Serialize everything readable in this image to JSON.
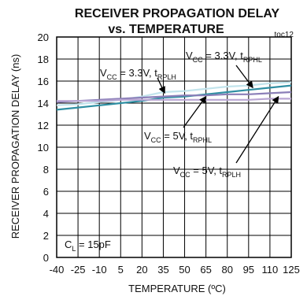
{
  "chart_data": {
    "type": "line",
    "title": "RECEIVER PROPAGATION DELAY",
    "subtitle": "vs. TEMPERATURE",
    "figure_id": "toc12",
    "xlabel": "TEMPERATURE (ºC)",
    "ylabel": "RECEIVER PROPAGATION DELAY (ns)",
    "xlim": [
      -40,
      125
    ],
    "ylim": [
      0,
      20
    ],
    "xticks": [
      -40,
      -25,
      -10,
      5,
      20,
      35,
      50,
      65,
      80,
      95,
      110,
      125
    ],
    "yticks": [
      0,
      2,
      4,
      6,
      8,
      10,
      12,
      14,
      16,
      18,
      20
    ],
    "grid": true,
    "series": [
      {
        "name": "VCC = 3.3V, tRPLH",
        "color": "#c2e4ec",
        "x": [
          -40,
          -25,
          -10,
          5,
          20,
          35,
          50,
          65,
          80,
          95,
          110,
          125
        ],
        "y": [
          13.8,
          13.9,
          14.1,
          14.3,
          14.6,
          15.0,
          15.1,
          15.3,
          15.5,
          15.6,
          15.8,
          15.9
        ]
      },
      {
        "name": "VCC = 3.3V, tRPHL",
        "color": "#2f8fa3",
        "x": [
          -40,
          -25,
          -10,
          5,
          20,
          35,
          50,
          65,
          80,
          95,
          110,
          125
        ],
        "y": [
          13.4,
          13.6,
          13.8,
          14.0,
          14.2,
          14.5,
          14.6,
          14.8,
          15.0,
          15.2,
          15.4,
          15.6
        ]
      },
      {
        "name": "VCC = 5V, tRPHL",
        "color": "#8b7fb8",
        "x": [
          -40,
          -25,
          -10,
          5,
          20,
          35,
          50,
          65,
          80,
          95,
          110,
          125
        ],
        "y": [
          14.1,
          14.2,
          14.3,
          14.4,
          14.5,
          14.6,
          14.7,
          14.7,
          14.8,
          14.8,
          14.9,
          15.0
        ]
      },
      {
        "name": "VCC = 5V, tRPLH",
        "color": "#b9a6d3",
        "x": [
          -40,
          -25,
          -10,
          5,
          20,
          35,
          50,
          65,
          80,
          95,
          110,
          125
        ],
        "y": [
          14.2,
          14.2,
          14.2,
          14.3,
          14.3,
          14.3,
          14.3,
          14.3,
          14.3,
          14.3,
          14.4,
          14.4
        ]
      }
    ],
    "annotations": [
      {
        "id": "a33plh",
        "parts": [
          [
            "V",
            "n"
          ],
          [
            "CC",
            "sub"
          ],
          [
            " = 3.3V, t",
            "n"
          ],
          [
            "RPLH",
            "sub"
          ]
        ],
        "target": [
          36,
          14.9
        ]
      },
      {
        "id": "a33phl",
        "parts": [
          [
            "V",
            "n"
          ],
          [
            "CC",
            "sub"
          ],
          [
            " = 3.3V, t",
            "n"
          ],
          [
            "RPHL",
            "sub"
          ]
        ],
        "target": [
          98,
          15.4
        ]
      },
      {
        "id": "a5phl",
        "parts": [
          [
            "V",
            "n"
          ],
          [
            "CC",
            "sub"
          ],
          [
            " = 5V, t",
            "n"
          ],
          [
            "RPHL",
            "sub"
          ]
        ],
        "target": [
          65,
          14.6
        ]
      },
      {
        "id": "a5plh",
        "parts": [
          [
            "V",
            "n"
          ],
          [
            "CC",
            "sub"
          ],
          [
            " = 5V, t",
            "n"
          ],
          [
            "RPLH",
            "sub"
          ]
        ],
        "target": [
          116,
          14.6
        ]
      },
      {
        "id": "acl",
        "parts": [
          [
            "C",
            "n"
          ],
          [
            "L",
            "sub"
          ],
          [
            " = 15pF",
            "n"
          ]
        ],
        "target": null
      }
    ]
  }
}
